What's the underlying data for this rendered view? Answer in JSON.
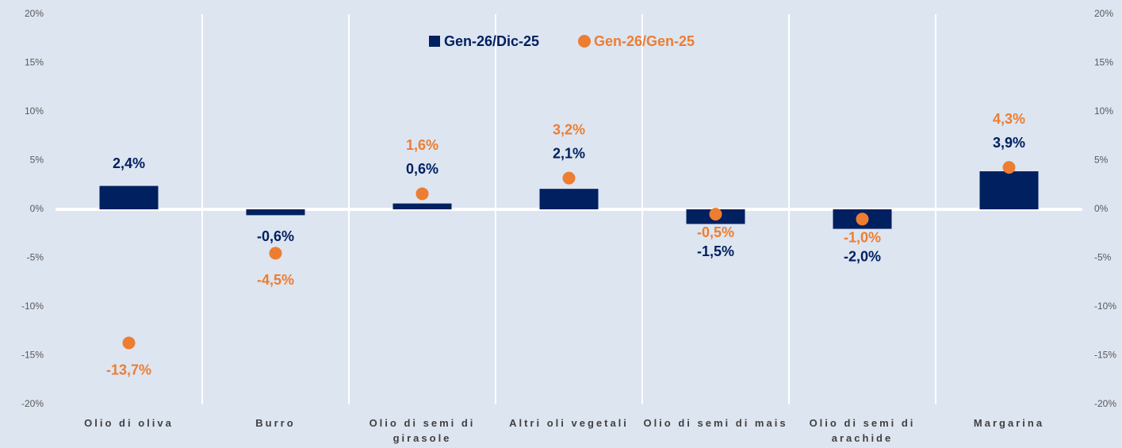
{
  "chart_data": {
    "type": "bar",
    "categories": [
      "Olio di oliva",
      "Burro",
      "Olio di semi di girasole",
      "Altri oli vegetali",
      "Olio di semi di mais",
      "Olio di semi di arachide",
      "Margarina"
    ],
    "series": [
      {
        "name": "Gen-26/Dic-25",
        "type": "bar",
        "color": "#002060",
        "values": [
          2.4,
          -0.6,
          0.6,
          2.1,
          -1.5,
          -2.0,
          3.9
        ],
        "value_labels": [
          "2,4%",
          "-0,6%",
          "0,6%",
          "2,1%",
          "-1,5%",
          "-2,0%",
          "3,9%"
        ]
      },
      {
        "name": "Gen-26/Gen-25",
        "type": "scatter",
        "color": "#ED7D31",
        "values": [
          -13.7,
          -4.5,
          1.6,
          3.2,
          -0.5,
          -1.0,
          4.3
        ],
        "value_labels": [
          "-13,7%",
          "-4,5%",
          "1,6%",
          "3,2%",
          "-0,5%",
          "-1,0%",
          "4,3%"
        ]
      }
    ],
    "ylim": [
      -20,
      20
    ],
    "yticks": [
      {
        "value": -20,
        "label": "-20%"
      },
      {
        "value": -15,
        "label": "-15%"
      },
      {
        "value": -10,
        "label": "-10%"
      },
      {
        "value": -5,
        "label": "-5%"
      },
      {
        "value": 0,
        "label": "0%"
      },
      {
        "value": 5,
        "label": "5%"
      },
      {
        "value": 10,
        "label": "10%"
      },
      {
        "value": 15,
        "label": "15%"
      },
      {
        "value": 20,
        "label": "20%"
      }
    ],
    "y2lim": [
      -20,
      20
    ],
    "y2ticks": [
      {
        "value": -20,
        "label": "-20%"
      },
      {
        "value": -15,
        "label": "-15%"
      },
      {
        "value": -10,
        "label": "-10%"
      },
      {
        "value": -5,
        "label": "-5%"
      },
      {
        "value": 0,
        "label": "0%"
      },
      {
        "value": 5,
        "label": "5%"
      },
      {
        "value": 10,
        "label": "10%"
      },
      {
        "value": 15,
        "label": "15%"
      },
      {
        "value": 20,
        "label": "20%"
      }
    ],
    "legend": "top"
  }
}
